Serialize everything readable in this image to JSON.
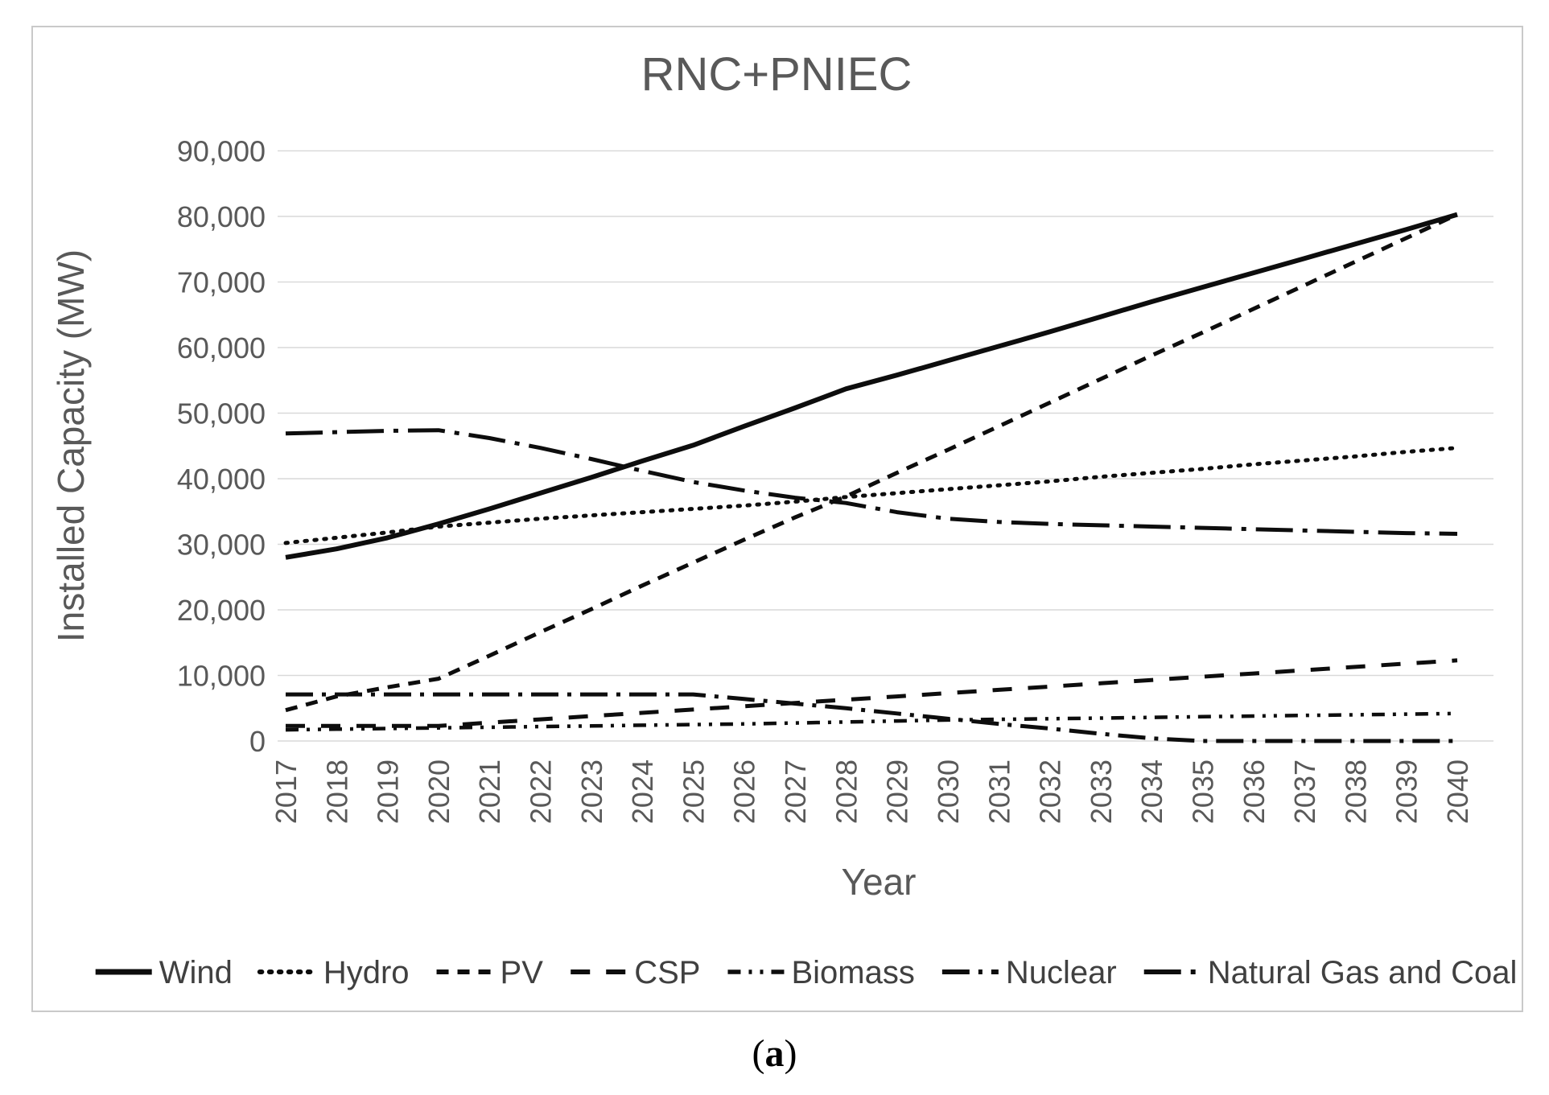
{
  "figure": {
    "caption": {
      "open": "(",
      "letter": "a",
      "close": ")"
    }
  },
  "chart_data": {
    "type": "line",
    "title": "RNC+PNIEC",
    "xlabel": "Year",
    "ylabel": "Installed Capacity (MW)",
    "ylim": [
      0,
      90000
    ],
    "ytick_step": 10000,
    "grid": "horizontal",
    "legend_position": "bottom",
    "colors": {
      "line": "#0d0d0d",
      "text": "#595959",
      "grid": "#d9d9d9",
      "border": "#c9c9c9"
    },
    "x": [
      2017,
      2018,
      2019,
      2020,
      2021,
      2022,
      2023,
      2024,
      2025,
      2026,
      2027,
      2028,
      2029,
      2030,
      2031,
      2032,
      2033,
      2034,
      2035,
      2036,
      2037,
      2038,
      2039,
      2040
    ],
    "series": [
      {
        "name": "Wind",
        "style": "solid",
        "values": [
          28000,
          29300,
          31000,
          33100,
          35400,
          37800,
          40200,
          42700,
          45100,
          48000,
          50800,
          53700,
          55800,
          58000,
          60200,
          62400,
          64700,
          67000,
          69200,
          71400,
          73600,
          75800,
          78000,
          80300
        ]
      },
      {
        "name": "Hydro",
        "style": "dotted",
        "values": [
          30200,
          31000,
          31800,
          32700,
          33300,
          33900,
          34400,
          34900,
          35400,
          35900,
          36500,
          37200,
          37800,
          38400,
          39000,
          39600,
          40300,
          40900,
          41500,
          42200,
          42800,
          43400,
          44100,
          44700
        ]
      },
      {
        "name": "PV",
        "style": "dashed",
        "values": [
          4700,
          6800,
          8200,
          9500,
          13000,
          16600,
          20100,
          23700,
          27200,
          30700,
          34100,
          37300,
          40900,
          44400,
          48000,
          51600,
          55200,
          58800,
          62300,
          65900,
          69500,
          73100,
          76700,
          80300
        ]
      },
      {
        "name": "CSP",
        "style": "long-dash",
        "values": [
          2300,
          2300,
          2300,
          2300,
          2800,
          3300,
          3800,
          4300,
          4800,
          5300,
          5800,
          6300,
          6800,
          7300,
          7800,
          8300,
          8800,
          9300,
          9800,
          10300,
          10800,
          11300,
          11800,
          12300
        ]
      },
      {
        "name": "Biomass",
        "style": "dash-dot-dot",
        "values": [
          1700,
          1800,
          1900,
          2000,
          2100,
          2200,
          2300,
          2400,
          2500,
          2600,
          2750,
          2900,
          3050,
          3200,
          3300,
          3400,
          3500,
          3600,
          3700,
          3800,
          3900,
          4000,
          4100,
          4200
        ]
      },
      {
        "name": "Nuclear",
        "style": "long-dash-dot",
        "values": [
          7100,
          7100,
          7100,
          7100,
          7100,
          7100,
          7100,
          7100,
          7100,
          6400,
          5700,
          5000,
          4200,
          3400,
          2600,
          1900,
          1100,
          400,
          0,
          0,
          0,
          0,
          0,
          0
        ]
      },
      {
        "name": "Natural Gas and Coal",
        "style": "long-dash-dot-wide",
        "values": [
          46900,
          47100,
          47300,
          47400,
          46200,
          44700,
          43000,
          41200,
          39500,
          38200,
          37100,
          36300,
          34900,
          33900,
          33400,
          33100,
          32900,
          32700,
          32500,
          32300,
          32100,
          31900,
          31700,
          31600
        ]
      }
    ]
  }
}
